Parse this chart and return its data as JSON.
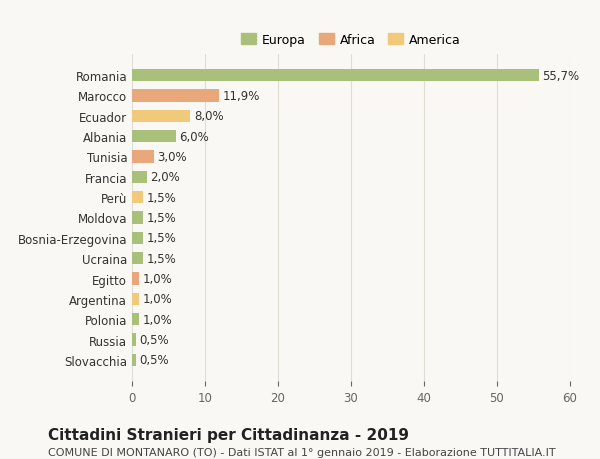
{
  "countries": [
    "Romania",
    "Marocco",
    "Ecuador",
    "Albania",
    "Tunisia",
    "Francia",
    "Perù",
    "Moldova",
    "Bosnia-Erzegovina",
    "Ucraina",
    "Egitto",
    "Argentina",
    "Polonia",
    "Russia",
    "Slovacchia"
  ],
  "values": [
    55.7,
    11.9,
    8.0,
    6.0,
    3.0,
    2.0,
    1.5,
    1.5,
    1.5,
    1.5,
    1.0,
    1.0,
    1.0,
    0.5,
    0.5
  ],
  "labels": [
    "55,7%",
    "11,9%",
    "8,0%",
    "6,0%",
    "3,0%",
    "2,0%",
    "1,5%",
    "1,5%",
    "1,5%",
    "1,5%",
    "1,0%",
    "1,0%",
    "1,0%",
    "0,5%",
    "0,5%"
  ],
  "continents": [
    "Europa",
    "Africa",
    "America",
    "Europa",
    "Africa",
    "Europa",
    "America",
    "Europa",
    "Europa",
    "Europa",
    "Africa",
    "America",
    "Europa",
    "Europa",
    "Europa"
  ],
  "colors": {
    "Europa": "#a8c07a",
    "Africa": "#e8a87c",
    "America": "#f0c97a"
  },
  "legend_colors": {
    "Europa": "#a8c07a",
    "Africa": "#e8a87c",
    "America": "#f0c97a"
  },
  "title": "Cittadini Stranieri per Cittadinanza - 2019",
  "subtitle": "COMUNE DI MONTANARO (TO) - Dati ISTAT al 1° gennaio 2019 - Elaborazione TUTTITALIA.IT",
  "xlim": [
    0,
    60
  ],
  "xticks": [
    0,
    10,
    20,
    30,
    40,
    50,
    60
  ],
  "background_color": "#f9f8f4",
  "grid_color": "#e0ddd5",
  "bar_height": 0.6,
  "label_fontsize": 8.5,
  "tick_fontsize": 8.5,
  "title_fontsize": 11,
  "subtitle_fontsize": 8
}
